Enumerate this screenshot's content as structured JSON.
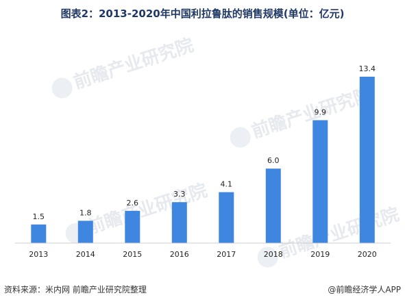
{
  "watermark": "前瞻产业研究院",
  "footer": {
    "source": "资料来源：米内网 前瞻产业研究院整理",
    "credit": "@前瞻经济学人APP"
  },
  "colors": {
    "bar": "#3f86e0",
    "title": "#1f3864"
  },
  "chart_data": {
    "type": "bar",
    "title": "图表2：2013-2020年中国利拉鲁肽的销售规模(单位：亿元)",
    "categories": [
      "2013",
      "2014",
      "2015",
      "2016",
      "2017",
      "2018",
      "2019",
      "2020"
    ],
    "values": [
      1.5,
      1.8,
      2.6,
      3.3,
      4.1,
      6.0,
      9.9,
      13.4
    ],
    "value_labels": [
      "1.5",
      "1.8",
      "2.6",
      "3.3",
      "4.1",
      "6.0",
      "9.9",
      "13.4"
    ],
    "xlabel": "",
    "ylabel": "",
    "ylim": [
      0,
      13.4
    ],
    "grid": false,
    "legend": "none"
  }
}
